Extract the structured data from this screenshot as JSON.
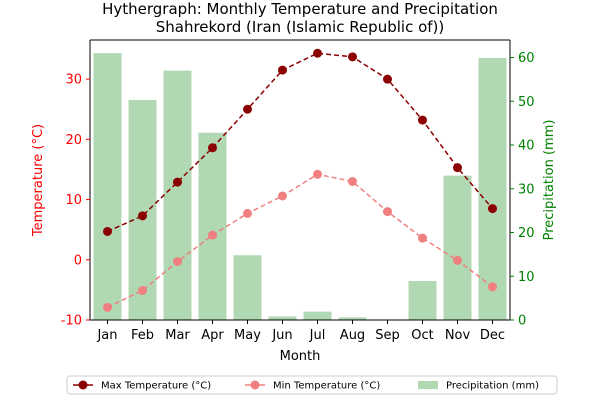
{
  "chart_data": {
    "type": "bar+line",
    "title": "Hythergraph: Monthly Temperature and Precipitation",
    "subtitle": "Shahrekord (Iran (Islamic Republic of))",
    "xlabel": "Month",
    "ylabel_left": "Temperature (°C)",
    "ylabel_right": "Precipitation (mm)",
    "categories": [
      "Jan",
      "Feb",
      "Mar",
      "Apr",
      "May",
      "Jun",
      "Jul",
      "Aug",
      "Sep",
      "Oct",
      "Nov",
      "Dec"
    ],
    "ylim_left": [
      -10,
      36.5
    ],
    "ylim_right": [
      0,
      64
    ],
    "yticks_left": [
      -10,
      0,
      10,
      20,
      30
    ],
    "yticks_right": [
      0,
      10,
      20,
      30,
      40,
      50,
      60
    ],
    "grid": false,
    "legend_position": "bottom",
    "series": [
      {
        "name": "Max Temperature (°C)",
        "type": "line",
        "axis": "left",
        "color": "#8b0000",
        "line_style": "dashed",
        "marker": "circle",
        "values": [
          4.7,
          7.3,
          12.9,
          18.6,
          25.0,
          31.5,
          34.3,
          33.7,
          30.0,
          23.2,
          15.3,
          8.5
        ]
      },
      {
        "name": "Min Temperature (°C)",
        "type": "line",
        "axis": "left",
        "color": "#f08080",
        "line_style": "dashed",
        "marker": "circle",
        "values": [
          -7.9,
          -5.1,
          -0.3,
          4.1,
          7.7,
          10.6,
          14.2,
          13.0,
          8.0,
          3.6,
          -0.1,
          -4.5
        ]
      },
      {
        "name": "Precipitation (mm)",
        "type": "bar",
        "axis": "right",
        "color": "#b0d8b3",
        "values": [
          61.0,
          50.3,
          57.0,
          42.8,
          14.8,
          0.8,
          1.9,
          0.6,
          0.0,
          8.9,
          33.0,
          59.9
        ]
      }
    ]
  }
}
